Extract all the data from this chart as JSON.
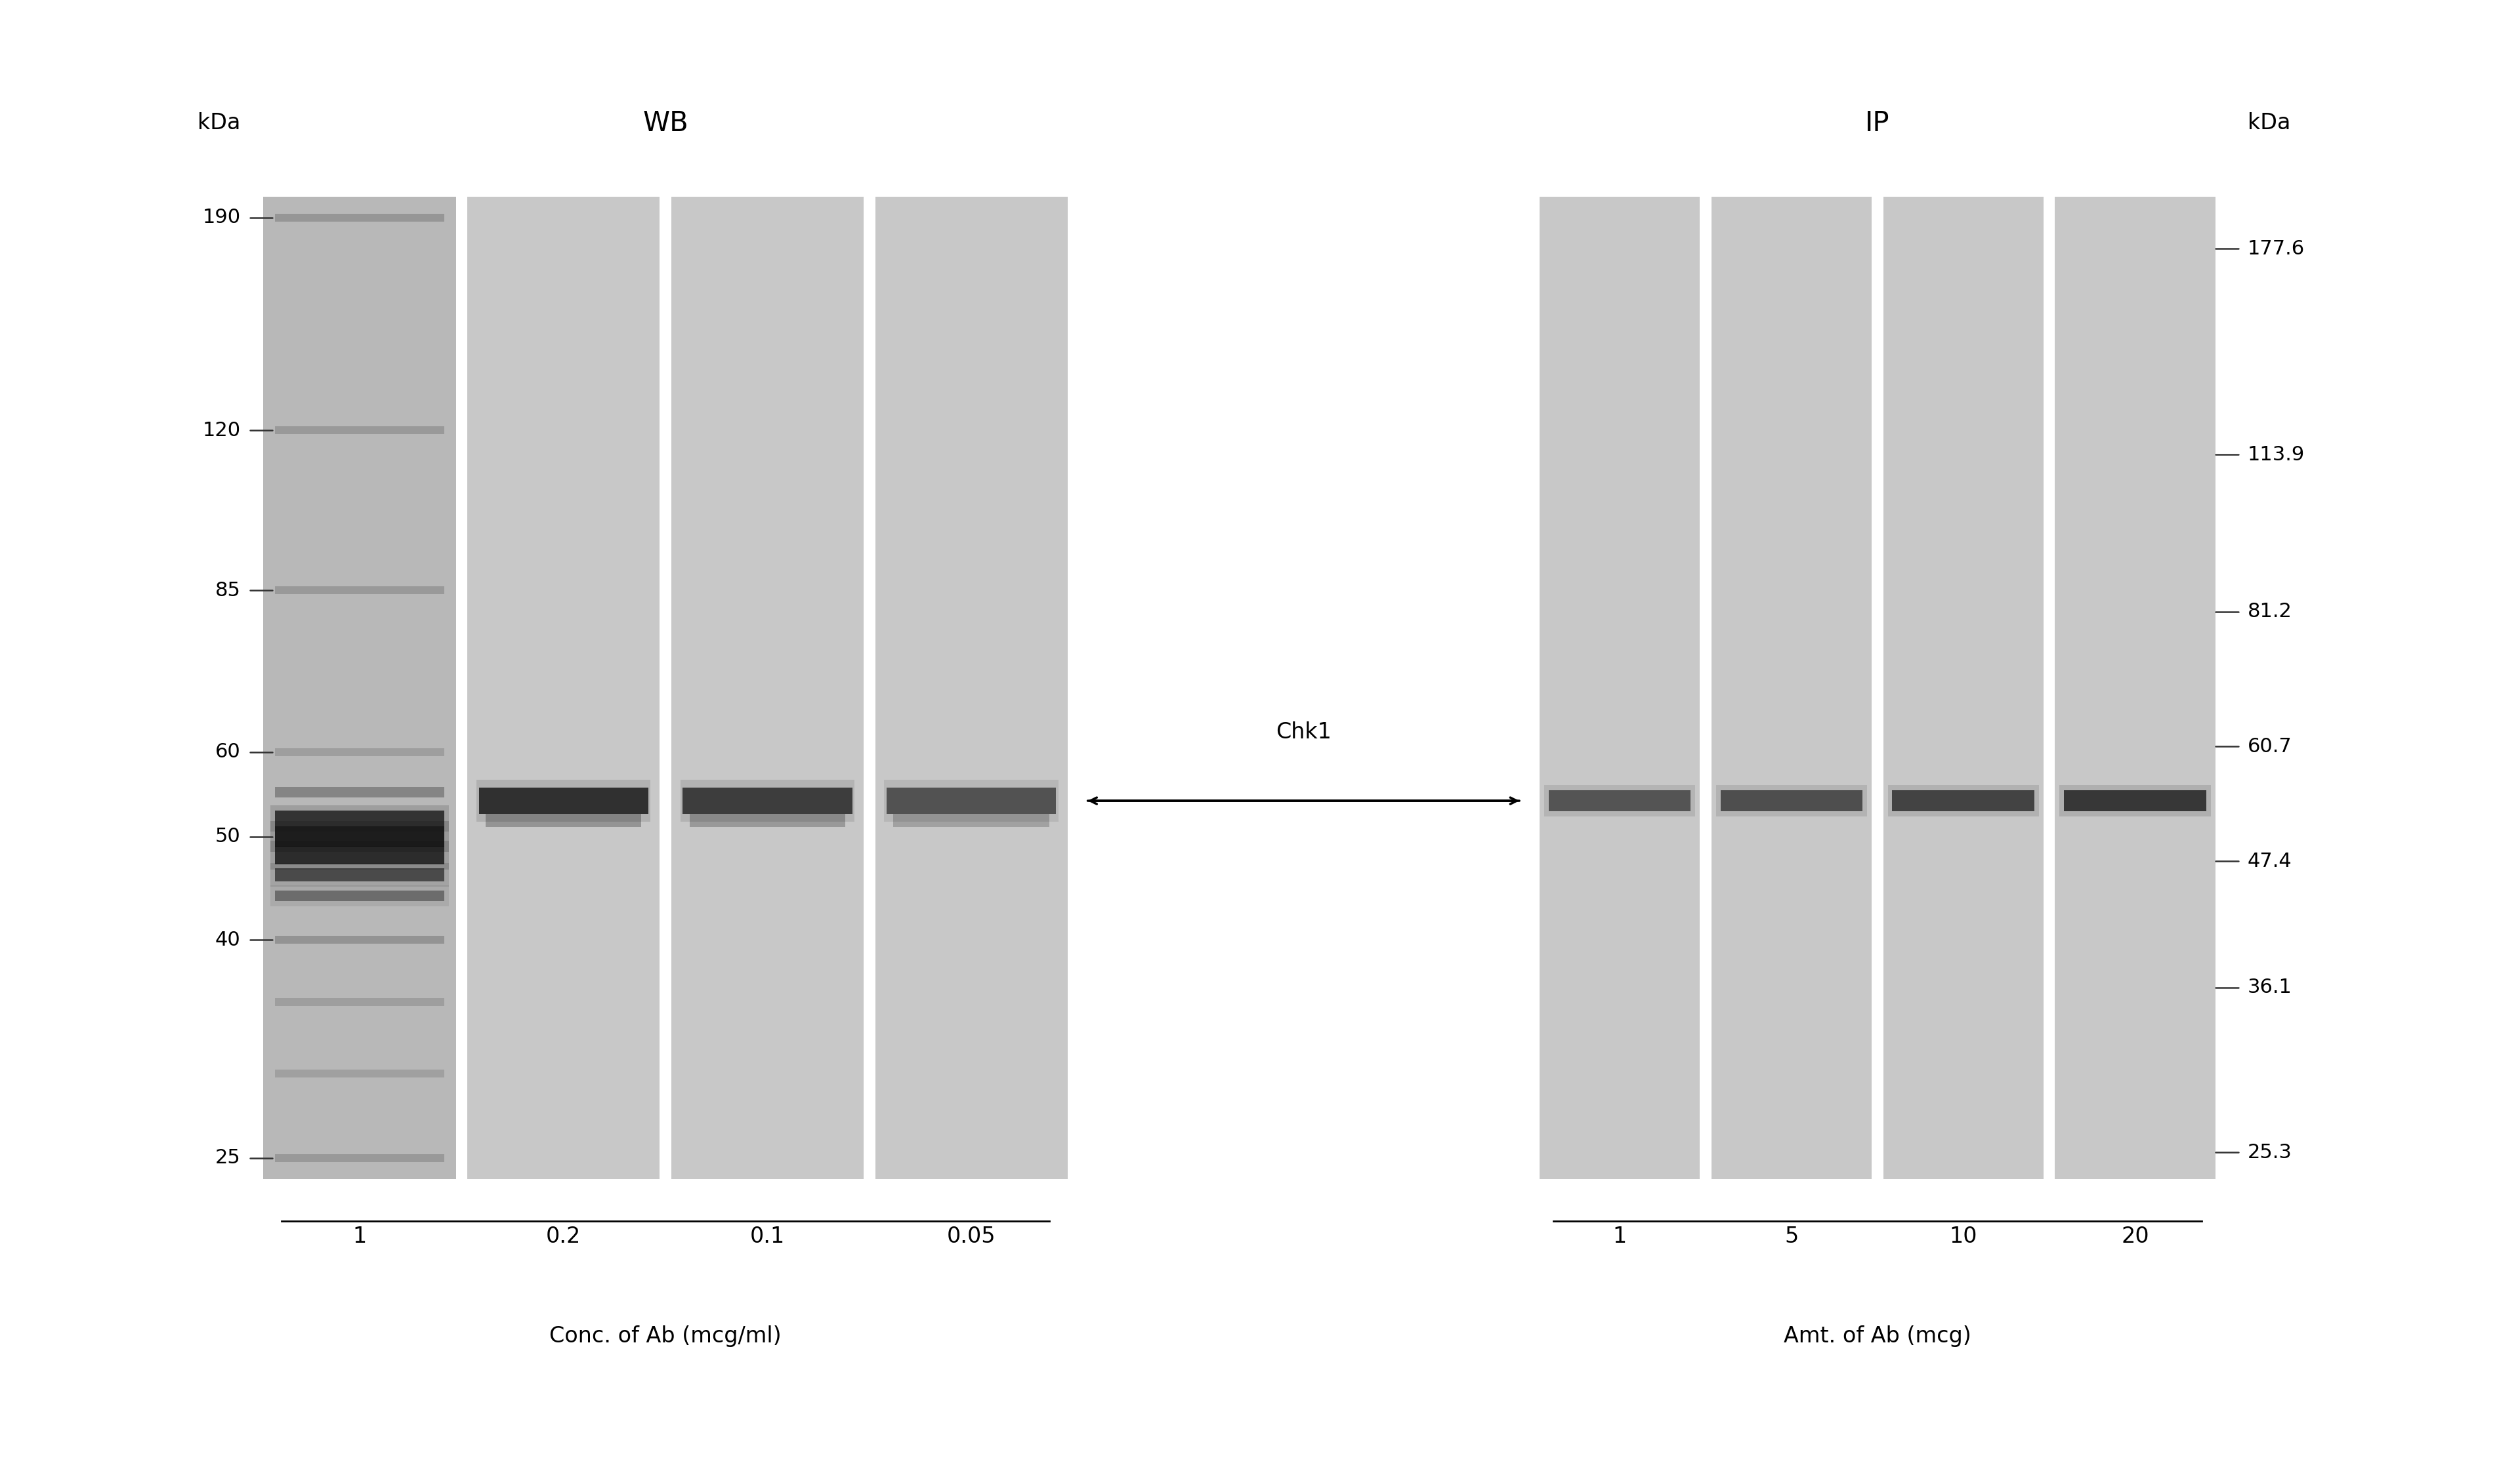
{
  "bg_color": "#ffffff",
  "panel_bg_wb": "#c0c0c0",
  "panel_bg_wb_lane0": "#b0b0b0",
  "panel_bg_ip": "#c8c8c8",
  "band_color_dark": "#101010",
  "band_color_med": "#282828",
  "title_WB": "WB",
  "title_IP": "IP",
  "chk1_label": "Chk1",
  "left_kda_label": "kDa",
  "right_kda_label": "kDa",
  "left_markers": [
    190,
    120,
    85,
    60,
    50,
    40,
    25
  ],
  "right_markers": [
    177.6,
    113.9,
    81.2,
    60.7,
    47.4,
    36.1,
    25.3
  ],
  "wb_xlabel": "Conc. of Ab (mcg/ml)",
  "ip_xlabel": "Amt. of Ab (mcg)",
  "wb_xtick_labels": [
    "1",
    "0.2",
    "0.1",
    "0.05"
  ],
  "ip_xtick_labels": [
    "1",
    "5",
    "10",
    "20"
  ],
  "font_size_title": 30,
  "font_size_labels": 24,
  "font_size_markers": 22,
  "font_size_chk1": 24,
  "lane_divider_color": "#e8e8e8",
  "tick_color": "#444444"
}
